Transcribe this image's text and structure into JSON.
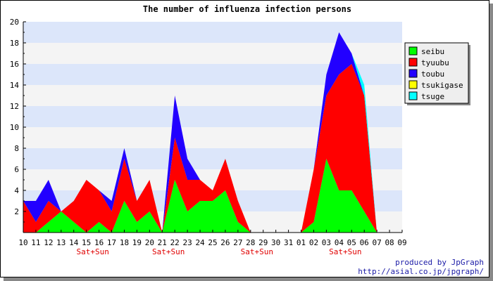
{
  "chart_data": {
    "type": "area",
    "stacked": true,
    "title": "The number of influenza infection persons",
    "xlabel": "",
    "ylabel": "",
    "ylim": [
      0,
      20
    ],
    "yticks": [
      2,
      4,
      6,
      8,
      10,
      12,
      14,
      16,
      18,
      20
    ],
    "grid": "alternating horizontal bands",
    "legend_position": "right",
    "categories": [
      "10",
      "11",
      "12",
      "13",
      "14",
      "15",
      "16",
      "17",
      "18",
      "19",
      "20",
      "21",
      "22",
      "23",
      "24",
      "25",
      "26",
      "27",
      "28",
      "29",
      "30",
      "31",
      "01",
      "02",
      "03",
      "04",
      "05",
      "06",
      "07",
      "08",
      "09"
    ],
    "weekend_label": "Sat+Sun",
    "weekend_after_categories": [
      "15",
      "21",
      "28",
      "04"
    ],
    "series": [
      {
        "name": "seibu",
        "color": "#00ff00",
        "values": [
          0,
          0,
          1,
          2,
          1,
          0,
          1,
          0,
          3,
          1,
          2,
          0,
          5,
          2,
          3,
          3,
          4,
          1,
          0,
          0,
          0,
          0,
          0,
          1,
          7,
          4,
          4,
          2,
          0,
          0,
          0
        ]
      },
      {
        "name": "tyuubu",
        "color": "#ff0000",
        "values": [
          3,
          1,
          2,
          0,
          2,
          5,
          3,
          2,
          4,
          2,
          3,
          0,
          4,
          3,
          2,
          1,
          3,
          2,
          0,
          0,
          0,
          0,
          0,
          5,
          6,
          11,
          12,
          11,
          0,
          0,
          0
        ]
      },
      {
        "name": "toubu",
        "color": "#2200ff",
        "values": [
          0,
          2,
          2,
          0,
          0,
          0,
          0,
          1,
          1,
          0,
          0,
          0,
          4,
          2,
          0,
          0,
          0,
          0,
          0,
          0,
          0,
          0,
          0,
          0,
          2,
          4,
          1,
          0,
          0,
          0,
          0
        ]
      },
      {
        "name": "tsukigase",
        "color": "#ffff00",
        "values": [
          0,
          0,
          0,
          0,
          0,
          0,
          0,
          0,
          0,
          0,
          0,
          0,
          0,
          0,
          0,
          0,
          0,
          0,
          0,
          0,
          0,
          0,
          0,
          0,
          0,
          0,
          0,
          0,
          0,
          0,
          0
        ]
      },
      {
        "name": "tsuge",
        "color": "#00ffff",
        "values": [
          0,
          0,
          0,
          0,
          0,
          0,
          0,
          0,
          0,
          0,
          0,
          0,
          0,
          0,
          0,
          0,
          0,
          0,
          0,
          0,
          0,
          0,
          0,
          0,
          0,
          0,
          0,
          1,
          0,
          0,
          0
        ]
      }
    ]
  },
  "credit": {
    "line1": "produced by JpGraph",
    "line2": "http://asial.co.jp/jpgraph/"
  },
  "colors": {
    "band_light": "#f4f4f4",
    "band_blue": "#dce6fa",
    "weekend_text": "#e00000",
    "credit_text": "#1a1aa6"
  }
}
